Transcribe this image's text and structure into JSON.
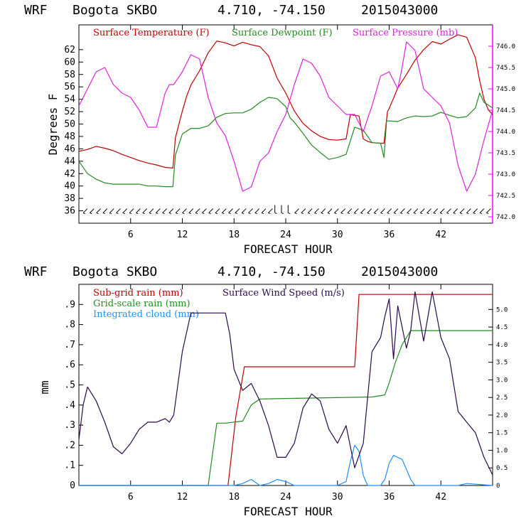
{
  "chart_data": [
    {
      "type": "line",
      "header": {
        "model": "WRF",
        "station": "Bogota SKBO",
        "coords": "4.710, -74.150",
        "init": "2015043000"
      },
      "xlabel": "FORECAST HOUR",
      "ylabel": "Degrees F",
      "x_ticks": [
        "6",
        "12",
        "18",
        "24",
        "30",
        "36",
        "42"
      ],
      "xlim": [
        0,
        48
      ],
      "ylim": [
        34,
        66
      ],
      "y_ticks": [
        "36",
        "38",
        "40",
        "42",
        "44",
        "46",
        "48",
        "50",
        "52",
        "54",
        "56",
        "58",
        "60",
        "62"
      ],
      "y2lim": [
        741.85,
        746.5
      ],
      "y2_ticks": [
        "742.0",
        "742.5",
        "743.0",
        "743.5",
        "744.0",
        "744.5",
        "745.0",
        "745.5",
        "746.0"
      ],
      "wind_barbs_row": "36",
      "colors": {
        "temperature": "#c00000",
        "dewpoint": "#238b23",
        "pressure": "#e020e0",
        "axis": "#ff00ff"
      },
      "series": [
        {
          "name": "Surface Temperature (F)",
          "axis": "left",
          "x": [
            0,
            1,
            2,
            3,
            4,
            5,
            6,
            7,
            8,
            9,
            10,
            10.9,
            11.2,
            12,
            12.5,
            13,
            14,
            15,
            16,
            17,
            18,
            19,
            20,
            21,
            22,
            23,
            24,
            25,
            26,
            27,
            28,
            29,
            30,
            31,
            31.5,
            32,
            32.5,
            33,
            33.5,
            34,
            35,
            35.4,
            35.8,
            36,
            37,
            38,
            39,
            40,
            41,
            42,
            43,
            44,
            45,
            46,
            46.5,
            47,
            47.5,
            48
          ],
          "y": [
            45.6,
            45.9,
            46.4,
            46.1,
            45.7,
            45.1,
            44.6,
            44.1,
            43.7,
            43.4,
            43.0,
            42.9,
            47.8,
            52.1,
            54.5,
            56.3,
            58.6,
            61.5,
            63.4,
            63.1,
            62.6,
            63.2,
            62.8,
            62.5,
            61.0,
            57.4,
            55.0,
            52.1,
            50.1,
            48.9,
            48.0,
            47.5,
            47.4,
            47.6,
            51.5,
            51.4,
            51.3,
            47.6,
            47.2,
            47.0,
            46.9,
            46.9,
            52.0,
            52.5,
            55.8,
            58.0,
            60.3,
            62.0,
            63.3,
            62.9,
            63.7,
            64.4,
            64.0,
            60.7,
            57.0,
            54.0,
            52.3,
            51.5
          ]
        },
        {
          "name": "Surface Dewpoint (F)",
          "axis": "left",
          "x": [
            0,
            1,
            2,
            3,
            4,
            5,
            6,
            7,
            8,
            9,
            10,
            10.9,
            11.2,
            12,
            13,
            14,
            15,
            16,
            17,
            18,
            19,
            20,
            21,
            22,
            23,
            24,
            24.5,
            25,
            26,
            27,
            28,
            29,
            30,
            31,
            32,
            33,
            34,
            35,
            35.4,
            35.7,
            36,
            37,
            38,
            39,
            40,
            41,
            42,
            43,
            44,
            45,
            46,
            46.5,
            47,
            48
          ],
          "y": [
            44.0,
            42.0,
            41.1,
            40.5,
            40.3,
            40.3,
            40.3,
            40.3,
            40.0,
            40.0,
            39.9,
            39.9,
            45.0,
            48.4,
            49.3,
            49.3,
            49.7,
            51.1,
            51.7,
            51.8,
            51.8,
            52.4,
            53.5,
            54.3,
            54.1,
            52.8,
            51.0,
            50.3,
            48.5,
            46.6,
            45.4,
            44.3,
            44.6,
            45.1,
            49.5,
            49.0,
            47.0,
            46.9,
            44.6,
            50.5,
            50.5,
            50.4,
            51.0,
            51.3,
            51.2,
            51.3,
            51.9,
            51.4,
            51.0,
            51.2,
            52.6,
            55.0,
            53.5,
            52.6
          ]
        },
        {
          "name": "Surface Pressure (mb)",
          "axis": "right",
          "x": [
            0,
            0.5,
            1,
            2,
            3,
            4,
            5,
            6,
            7,
            8,
            9,
            10,
            10.5,
            11,
            12,
            13,
            14,
            15,
            16,
            17,
            18,
            19,
            20,
            21,
            22,
            23,
            24,
            25,
            26,
            27,
            28,
            29,
            30,
            31,
            32,
            33,
            34,
            35,
            36,
            37,
            37.5,
            38,
            39,
            40,
            41,
            42,
            43,
            44,
            45,
            45.5,
            46,
            47,
            48
          ],
          "y": [
            744.6,
            744.8,
            745.0,
            745.4,
            745.5,
            745.1,
            744.9,
            744.8,
            744.5,
            744.1,
            744.1,
            744.9,
            745.1,
            745.1,
            745.4,
            745.8,
            745.7,
            744.8,
            744.2,
            743.9,
            743.3,
            742.6,
            742.7,
            743.3,
            743.5,
            744.0,
            744.4,
            745.1,
            745.7,
            745.6,
            745.3,
            744.8,
            744.6,
            744.4,
            744.4,
            744.0,
            744.6,
            745.3,
            745.4,
            745.0,
            745.5,
            746.1,
            745.9,
            745.0,
            744.8,
            744.6,
            744.2,
            743.2,
            742.6,
            742.8,
            743.0,
            743.8,
            744.5
          ]
        }
      ]
    },
    {
      "type": "line",
      "header": {
        "model": "WRF",
        "station": "Bogota SKBO",
        "coords": "4.710, -74.150",
        "init": "2015043000"
      },
      "xlabel": "FORECAST HOUR",
      "ylabel": "mm",
      "x_ticks": [
        "6",
        "12",
        "18",
        "24",
        "30",
        "36",
        "42"
      ],
      "xlim": [
        0,
        48
      ],
      "ylim": [
        0,
        1.0
      ],
      "y_ticks": [
        "0",
        ".1",
        ".2",
        ".3",
        ".4",
        ".5",
        ".6",
        ".7",
        ".8",
        ".9"
      ],
      "y2lim": [
        0,
        5.714
      ],
      "y2_ticks": [
        "0",
        "0.5",
        "1.0",
        "1.5",
        "2.0",
        "2.5",
        "3.0",
        "3.5",
        "4.0",
        "4.5",
        "5.0"
      ],
      "colors": {
        "subgrid": "#c00000",
        "gridscale": "#238b23",
        "cloud": "#1e90ff",
        "wind": "#2a0a4a"
      },
      "series": [
        {
          "name": "Sub-grid rain (mm)",
          "axis": "left",
          "x": [
            0,
            17.3,
            18.2,
            19.2,
            32.0,
            32.5,
            48
          ],
          "y": [
            0,
            0,
            0.34,
            0.59,
            0.59,
            0.95,
            0.95
          ]
        },
        {
          "name": "Grid-scale rain (mm)",
          "axis": "left",
          "x": [
            0,
            15.0,
            16.0,
            17.0,
            19.0,
            20.0,
            21.0,
            34.0,
            35.5,
            36.0,
            36.7,
            37.5,
            38.5,
            40.0,
            48
          ],
          "y": [
            0,
            0,
            0.31,
            0.31,
            0.32,
            0.4,
            0.43,
            0.44,
            0.45,
            0.51,
            0.61,
            0.7,
            0.77,
            0.77,
            0.77
          ]
        },
        {
          "name": "Integrated cloud (mm)",
          "axis": "left",
          "x": [
            0,
            15,
            17,
            18,
            19,
            19.5,
            20,
            21,
            22,
            23,
            24,
            25,
            26,
            30,
            31,
            31.5,
            32,
            32.5,
            33,
            33.5,
            34,
            35,
            35.5,
            36,
            36.5,
            37,
            37.5,
            38,
            38.5,
            39,
            40,
            44,
            45,
            48
          ],
          "y": [
            0,
            0,
            0,
            0,
            0.01,
            0.02,
            0.03,
            0,
            0.01,
            0.03,
            0.02,
            0,
            0,
            0,
            0.02,
            0.12,
            0.2,
            0.17,
            0.05,
            0,
            0,
            0,
            0.03,
            0.11,
            0.15,
            0.14,
            0.13,
            0.08,
            0.03,
            0,
            0,
            0,
            0.01,
            0
          ]
        },
        {
          "name": "Surface Wind Speed (m/s)",
          "axis": "right",
          "x": [
            0,
            0.5,
            1,
            2,
            3,
            4,
            5,
            6,
            7,
            8,
            9,
            10,
            10.5,
            11,
            12,
            13,
            14,
            15,
            16,
            17,
            17.5,
            18,
            19,
            20,
            21,
            22,
            23,
            24,
            25,
            26,
            27,
            28,
            29,
            30,
            31,
            32,
            33,
            34,
            35,
            35.5,
            36,
            36.5,
            37,
            38,
            38.5,
            39,
            40,
            41,
            42,
            43,
            44,
            45,
            46,
            47,
            48
          ],
          "y": [
            1.3,
            2.3,
            2.8,
            2.4,
            1.8,
            1.1,
            0.9,
            1.2,
            1.6,
            1.8,
            1.8,
            1.9,
            1.8,
            2.0,
            3.8,
            4.9,
            4.9,
            4.9,
            4.9,
            4.9,
            4.3,
            3.3,
            2.7,
            2.9,
            2.4,
            1.7,
            0.8,
            0.8,
            1.2,
            2.2,
            2.6,
            2.4,
            1.6,
            1.2,
            1.7,
            0.5,
            1.2,
            3.8,
            4.2,
            4.8,
            5.3,
            3.6,
            5.1,
            3.9,
            4.4,
            5.5,
            4.1,
            5.5,
            4.2,
            3.6,
            2.1,
            1.8,
            1.5,
            0.8,
            0.3
          ]
        }
      ]
    }
  ],
  "legend_top": {
    "temperature": "Surface Temperature (F)",
    "dewpoint": "Surface Dewpoint (F)",
    "pressure": "Surface Pressure (mb)"
  },
  "legend_bottom": {
    "subgrid": "Sub-grid rain (mm)",
    "wind": "Surface Wind Speed (m/s)",
    "gridscale": "Grid-scale rain (mm)",
    "cloud": "Integrated cloud (mm)"
  }
}
